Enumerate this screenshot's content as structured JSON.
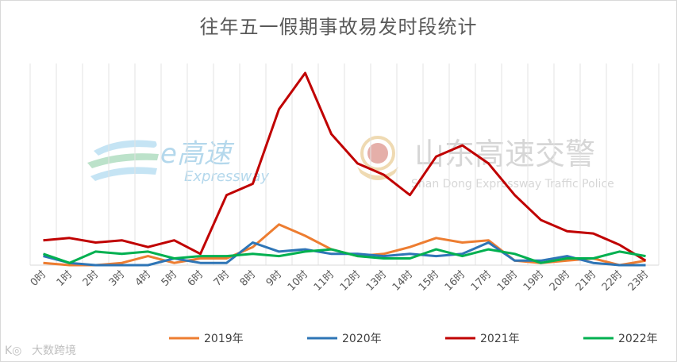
{
  "chart_data": {
    "type": "line",
    "title": "往年五一假期事故易发时段统计",
    "xlabel": "",
    "ylabel": "",
    "categories": [
      "0时",
      "1时",
      "2时",
      "3时",
      "4时",
      "5时",
      "6时",
      "7时",
      "8时",
      "9时",
      "10时",
      "11时",
      "12时",
      "13时",
      "14时",
      "15时",
      "16时",
      "17时",
      "18时",
      "19时",
      "20时",
      "21时",
      "22时",
      "23时"
    ],
    "ylim": [
      0,
      85
    ],
    "grid": "vertical",
    "legend": "bottom",
    "series": [
      {
        "name": "2019年",
        "color": "#ED7D31",
        "values": [
          1,
          0,
          0,
          1,
          4,
          1,
          3,
          3,
          8,
          18,
          13,
          7,
          4,
          5,
          8,
          12,
          10,
          11,
          2,
          1,
          2,
          3,
          0,
          2
        ]
      },
      {
        "name": "2020年",
        "color": "#2E75B6",
        "values": [
          4,
          1,
          0,
          0,
          0,
          3,
          1,
          1,
          10,
          6,
          7,
          5,
          5,
          4,
          5,
          4,
          5,
          10,
          2,
          2,
          4,
          1,
          0,
          0
        ]
      },
      {
        "name": "2021年",
        "color": "#C00000",
        "values": [
          11,
          12,
          10,
          11,
          8,
          11,
          5,
          31,
          36,
          69,
          85,
          58,
          45,
          40,
          31,
          48,
          53,
          45,
          31,
          20,
          15,
          14,
          9,
          2
        ]
      },
      {
        "name": "2022年",
        "color": "#00B050",
        "values": [
          5,
          1,
          6,
          5,
          6,
          3,
          4,
          4,
          5,
          4,
          6,
          7,
          4,
          3,
          3,
          7,
          4,
          7,
          5,
          1,
          3,
          3,
          6,
          4
        ]
      }
    ]
  },
  "watermarks": {
    "expressway_logo": "e高速",
    "expressway_sub": "Expressway",
    "police_title": "山东高速交警",
    "police_sub": "Shan Dong Expressway Traffic Police",
    "source": "大数跨境"
  }
}
